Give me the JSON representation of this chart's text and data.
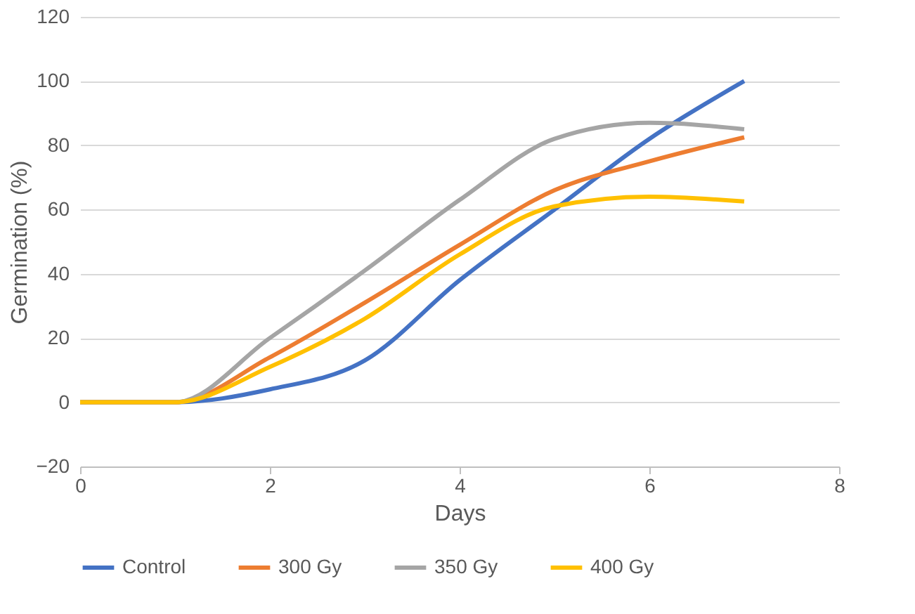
{
  "chart_data": {
    "type": "line",
    "xlabel": "Days",
    "ylabel": "Germination (%)",
    "x": [
      0,
      1,
      2,
      3,
      4,
      5,
      6,
      7
    ],
    "series": [
      {
        "name": "Control",
        "color": "#4472c4",
        "values": [
          0,
          0,
          4,
          13,
          38,
          60,
          82,
          100
        ]
      },
      {
        "name": "300 Gy",
        "color": "#ed7d31",
        "values": [
          0,
          0,
          14,
          31,
          49,
          66,
          75,
          82.5
        ]
      },
      {
        "name": "350 Gy",
        "color": "#a5a5a5",
        "values": [
          0,
          0,
          20,
          41,
          63,
          82,
          87,
          85
        ]
      },
      {
        "name": "400 Gy",
        "color": "#ffc000",
        "values": [
          0,
          0,
          11,
          26,
          46,
          61,
          64,
          62.5
        ]
      }
    ],
    "xlim": [
      0,
      8
    ],
    "xticks": [
      0,
      2,
      4,
      6,
      8
    ],
    "ylim": [
      -20,
      120
    ],
    "yticks": [
      -20,
      0,
      20,
      40,
      60,
      80,
      100,
      120
    ],
    "grid": "y",
    "legend": "bottom",
    "marker": "none",
    "line_style": "solid"
  }
}
